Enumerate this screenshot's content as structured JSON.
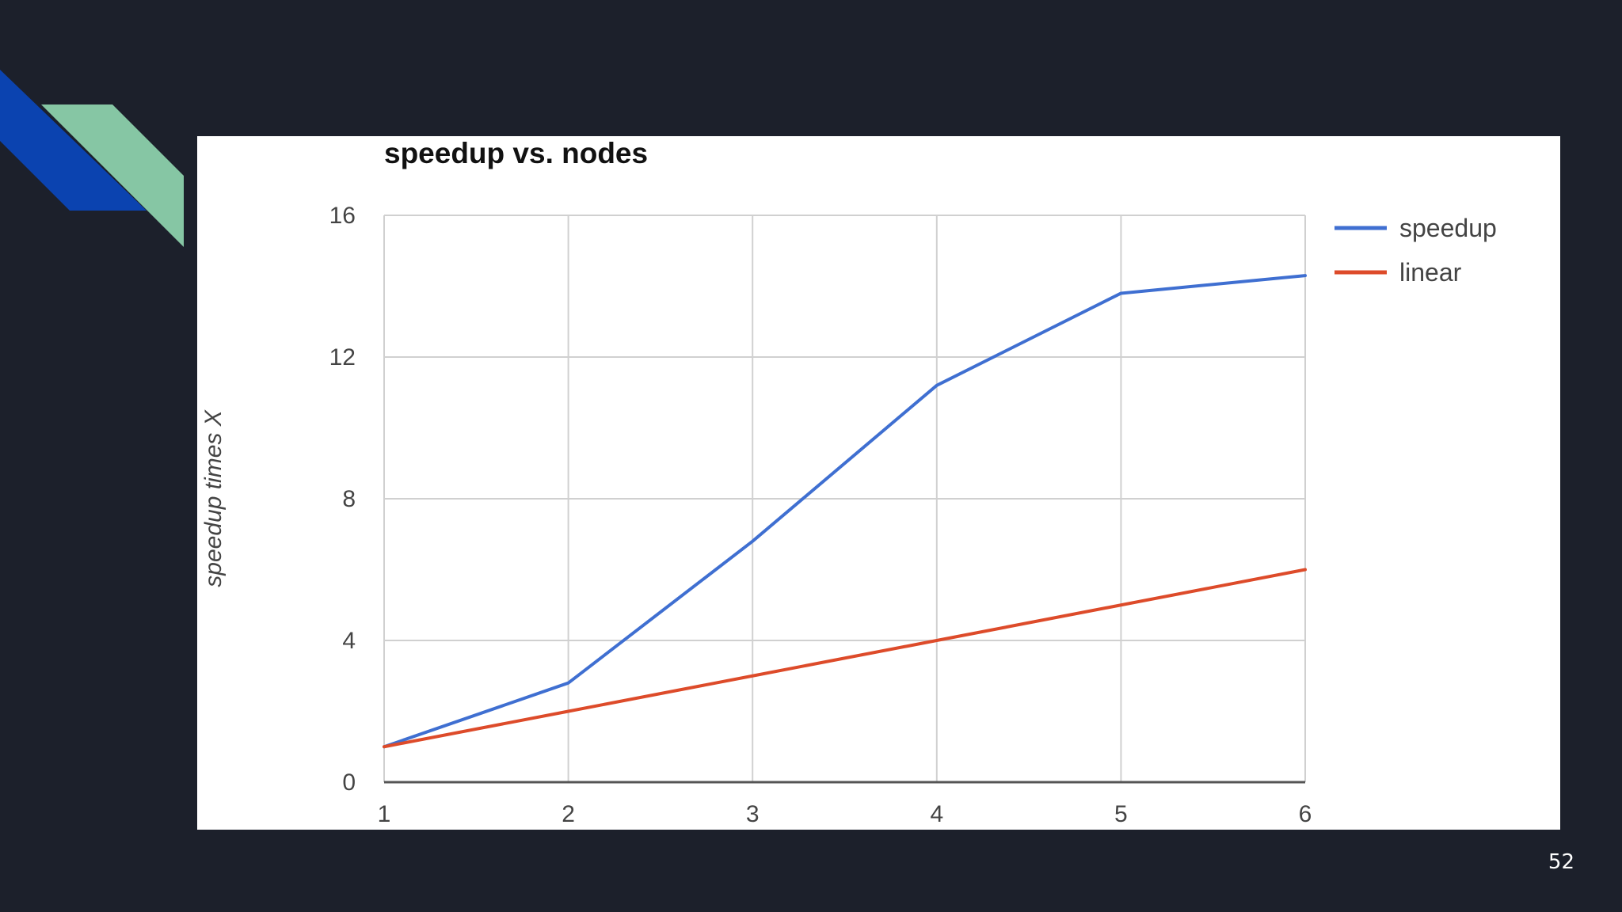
{
  "slide": {
    "page_number": "52"
  },
  "colors": {
    "background": "#1c202b",
    "deco_blue": "#0b43b0",
    "deco_green": "#86c6a4",
    "speedup": "#3f6fd1",
    "linear": "#dd4b2a",
    "grid": "#d0d0d0",
    "axis": "#555555",
    "tick_text": "#444444"
  },
  "chart_data": {
    "type": "line",
    "title": "speedup vs. nodes",
    "xlabel": "",
    "ylabel": "speedup times X",
    "x": [
      1,
      2,
      3,
      4,
      5,
      6
    ],
    "xticks": [
      "1",
      "2",
      "3",
      "4",
      "5",
      "6"
    ],
    "yticks": [
      "0",
      "4",
      "8",
      "12",
      "16"
    ],
    "ylim": [
      0,
      16
    ],
    "xlim": [
      1,
      6
    ],
    "grid": true,
    "legend_position": "right-top",
    "series": [
      {
        "name": "speedup",
        "values": [
          1,
          2.8,
          6.8,
          11.2,
          13.8,
          14.3
        ]
      },
      {
        "name": "linear",
        "values": [
          1,
          2,
          3,
          4,
          5,
          6
        ]
      }
    ]
  }
}
